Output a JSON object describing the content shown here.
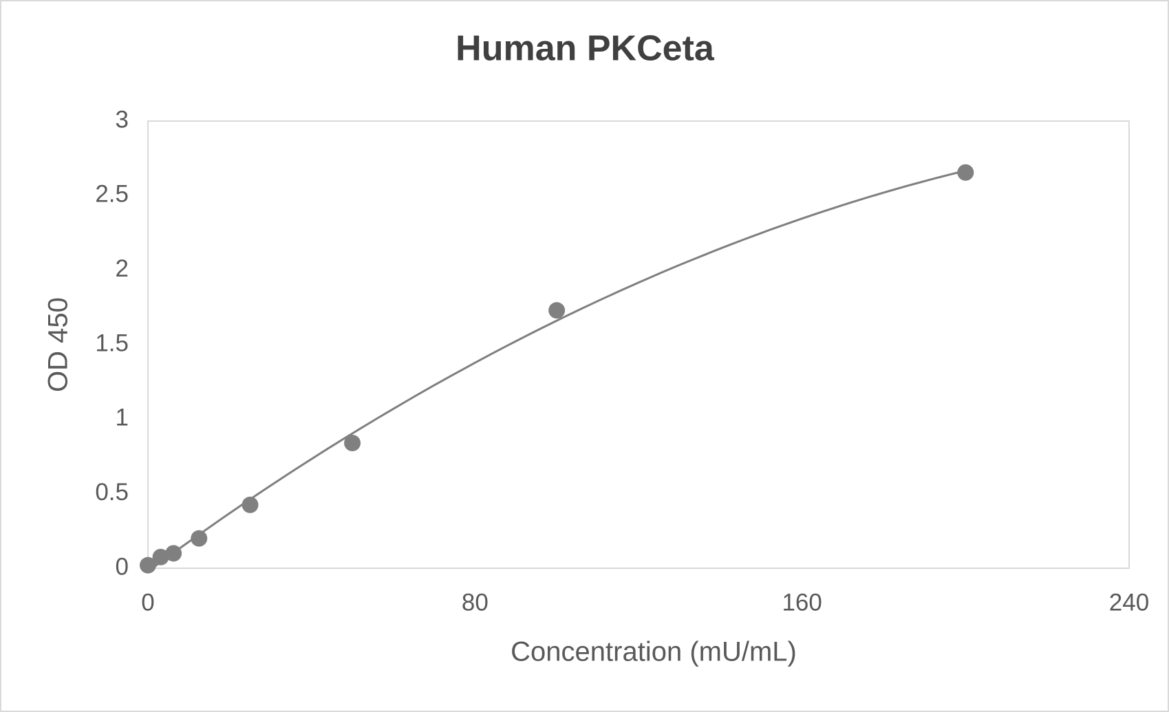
{
  "chart_data": {
    "type": "scatter",
    "title": "Human PKCeta",
    "x_label": "Concentration (mU/mL)",
    "y_label": "OD 450",
    "x": [
      0,
      3.125,
      6.25,
      12.5,
      25,
      50,
      100,
      200
    ],
    "series": [
      {
        "color": "#808080",
        "values": [
          0.02,
          0.075,
          0.1,
          0.2,
          0.425,
          0.84,
          1.73,
          2.655
        ]
      }
    ],
    "xlim": [
      0,
      240
    ],
    "xticks": [
      0,
      80,
      160,
      240
    ],
    "ylim": [
      0,
      3
    ],
    "yticks": [
      0,
      0.5,
      1,
      1.5,
      2,
      2.5,
      3
    ],
    "grid": false,
    "trendline": "polynomial"
  }
}
